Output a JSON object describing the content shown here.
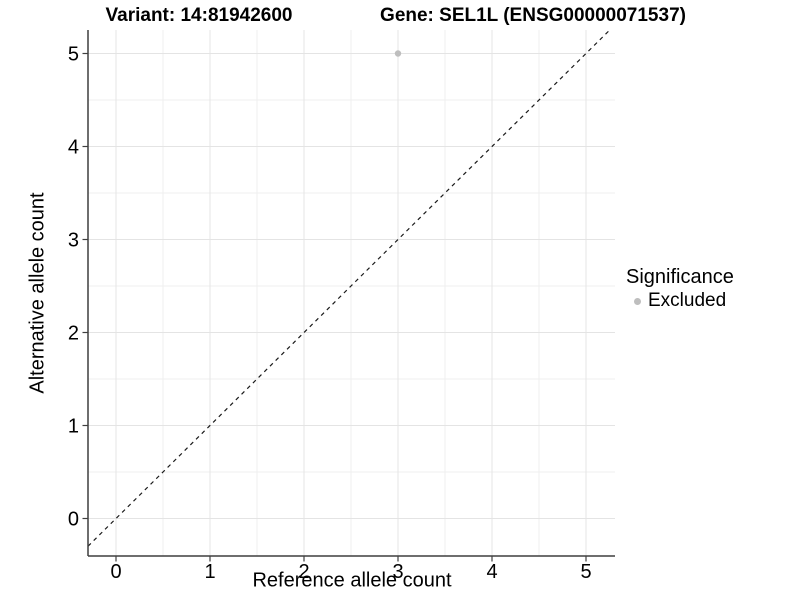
{
  "chart_data": {
    "type": "scatter",
    "titles": {
      "left": "Variant: 14:81942600",
      "right": "Gene: SEL1L (ENSG00000071537)"
    },
    "xlabel": "Reference allele count",
    "ylabel": "Alternative allele count",
    "xticks": [
      0,
      1,
      2,
      3,
      4,
      5
    ],
    "yticks": [
      0,
      1,
      2,
      3,
      4,
      5
    ],
    "xlim": [
      -0.3,
      5.31
    ],
    "ylim": [
      -0.4,
      5.25
    ],
    "grid": {
      "major": true,
      "minor": true
    },
    "identity_line": {
      "equation": "y = x",
      "style": "dashed",
      "color": "#1a1a1a"
    },
    "series": [
      {
        "name": "Excluded",
        "color": "#bebebe",
        "points": [
          [
            3,
            5
          ]
        ]
      }
    ],
    "legend": {
      "title": "Significance",
      "position": "right",
      "items": [
        {
          "label": "Excluded",
          "color": "#bebebe",
          "marker": "circle"
        }
      ]
    }
  },
  "colors": {
    "background": "#ffffff",
    "grid_major": "#e4e4e4",
    "grid_minor": "#efefef",
    "axis": "#3f3f3f",
    "tick_text": "#000000"
  }
}
